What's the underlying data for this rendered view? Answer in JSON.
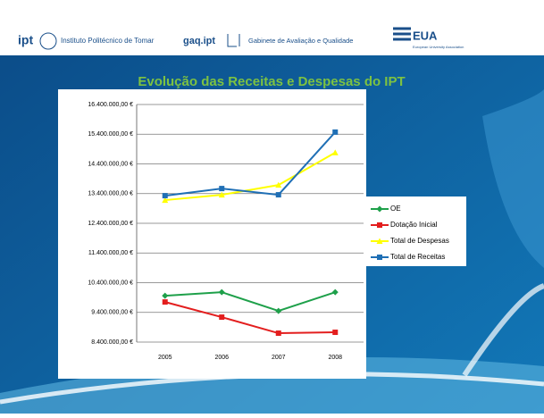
{
  "header": {
    "ipt": "ipt",
    "ipt_name": "Instituto Politécnico de Tomar",
    "gaq": "gaq.ipt",
    "gaq_name": "Gabinete de Avaliação e Qualidade",
    "eua": "EUA",
    "eua_name": "European University Association"
  },
  "chart_data": {
    "type": "line",
    "title": "Evolução das Receitas e Despesas do IPT",
    "categories": [
      "2005",
      "2006",
      "2007",
      "2008"
    ],
    "series": [
      {
        "name": "OE",
        "color": "#1ea04a",
        "marker": "diamond",
        "values": [
          9960000,
          10080000,
          9450000,
          10080000
        ]
      },
      {
        "name": "Dotação Inicial",
        "color": "#e31e1e",
        "marker": "square",
        "values": [
          9750000,
          9240000,
          8700000,
          8730000
        ]
      },
      {
        "name": "Total de Despesas",
        "color": "#ffff00",
        "marker": "triangle",
        "values": [
          13180000,
          13360000,
          13690000,
          14780000
        ]
      },
      {
        "name": "Total de Receitas",
        "color": "#1f6fb5",
        "marker": "square",
        "values": [
          13330000,
          13570000,
          13360000,
          15470000
        ]
      }
    ],
    "ylim": [
      8400000,
      16400000
    ],
    "yticks": [
      {
        "value": 8400000,
        "label": "8.400.000,00 €"
      },
      {
        "value": 9400000,
        "label": "9.400.000,00 €"
      },
      {
        "value": 10400000,
        "label": "10.400.000,00 €"
      },
      {
        "value": 11400000,
        "label": "11.400.000,00 €"
      },
      {
        "value": 12400000,
        "label": "12.400.000,00 €"
      },
      {
        "value": 13400000,
        "label": "13.400.000,00 €"
      },
      {
        "value": 14400000,
        "label": "14.400.000,00 €"
      },
      {
        "value": 15400000,
        "label": "15.400.000,00 €"
      },
      {
        "value": 16400000,
        "label": "16.400.000,00 €"
      }
    ],
    "grid": true,
    "legend": "right"
  }
}
